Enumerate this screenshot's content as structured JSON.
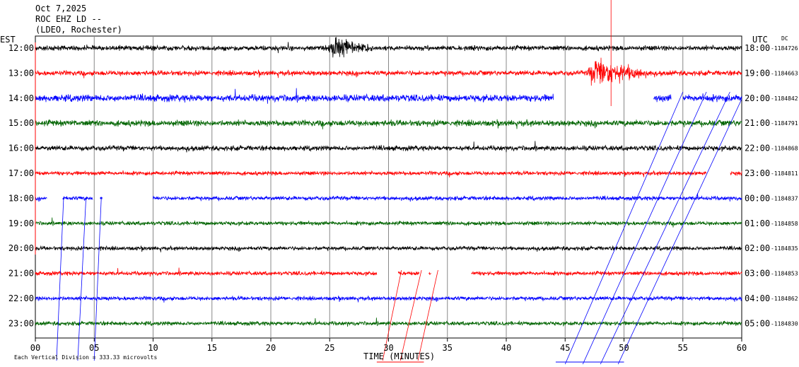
{
  "header": {
    "date": "Oct 7,2025",
    "station": "ROC EHZ LD --",
    "network": "(LDEO, Rochester)"
  },
  "labels": {
    "left_tz": "EST",
    "right_tz": "UTC",
    "dc": "DC",
    "xlabel": "TIME (MINUTES)",
    "footnote": "Each Vertical Division = 333.33 microvolts"
  },
  "colors": {
    "cycle": [
      "#000000",
      "#ff0000",
      "#0000ff",
      "#006400"
    ],
    "grid": "#888888",
    "slope_red": "#ff0000",
    "slope_blue": "#0000ff"
  },
  "chart_data": {
    "type": "line",
    "title": "ROC EHZ LD --",
    "xlabel": "TIME (MINUTES)",
    "ylabel": "",
    "xlim": [
      0,
      60
    ],
    "x_ticks": [
      "00",
      "05",
      "10",
      "15",
      "20",
      "25",
      "30",
      "35",
      "40",
      "45",
      "50",
      "55",
      "60"
    ],
    "grid": true,
    "series": [
      {
        "est": "12:00",
        "utc": "18:00",
        "dc": "-1184726",
        "color": "#000000",
        "amp": 5,
        "gaps": [],
        "events": [
          {
            "t": 25.5,
            "dur": 4,
            "amp": 26
          }
        ]
      },
      {
        "est": "13:00",
        "utc": "19:00",
        "dc": "-1184663",
        "color": "#ff0000",
        "amp": 5,
        "gaps": [],
        "events": [
          {
            "t": 47.5,
            "dur": 6,
            "amp": 30
          }
        ]
      },
      {
        "est": "14:00",
        "utc": "20:00",
        "dc": "-1184842",
        "color": "#0000ff",
        "amp": 7,
        "gaps": [
          [
            44,
            52.5
          ],
          [
            54,
            55
          ]
        ],
        "events": []
      },
      {
        "est": "15:00",
        "utc": "21:00",
        "dc": "-1184791",
        "color": "#006400",
        "amp": 6,
        "gaps": [],
        "events": []
      },
      {
        "est": "16:00",
        "utc": "22:00",
        "dc": "-1184868",
        "color": "#000000",
        "amp": 5,
        "gaps": [],
        "events": []
      },
      {
        "est": "17:00",
        "utc": "23:00",
        "dc": "-1184811",
        "color": "#ff0000",
        "amp": 4,
        "gaps": [
          [
            57,
            59
          ]
        ],
        "events": []
      },
      {
        "est": "18:00",
        "utc": "00:00",
        "dc": "-1184837",
        "color": "#0000ff",
        "amp": 4,
        "gaps": [
          [
            1,
            2.3
          ],
          [
            4.9,
            5.5
          ],
          [
            5.7,
            10
          ]
        ],
        "events": []
      },
      {
        "est": "19:00",
        "utc": "01:00",
        "dc": "-1184858",
        "color": "#006400",
        "amp": 4,
        "gaps": [],
        "events": []
      },
      {
        "est": "20:00",
        "utc": "02:00",
        "dc": "-1184835",
        "color": "#000000",
        "amp": 4,
        "gaps": [],
        "events": []
      },
      {
        "est": "21:00",
        "utc": "03:00",
        "dc": "-1184853",
        "color": "#ff0000",
        "amp": 4,
        "gaps": [
          [
            29,
            30.8
          ],
          [
            32.6,
            33.4
          ],
          [
            33.6,
            37
          ]
        ],
        "events": []
      },
      {
        "est": "22:00",
        "utc": "04:00",
        "dc": "-1184862",
        "color": "#0000ff",
        "amp": 4,
        "gaps": [],
        "events": []
      },
      {
        "est": "23:00",
        "utc": "05:00",
        "dc": "-1184830",
        "color": "#006400",
        "amp": 4,
        "gaps": [],
        "events": []
      }
    ]
  }
}
